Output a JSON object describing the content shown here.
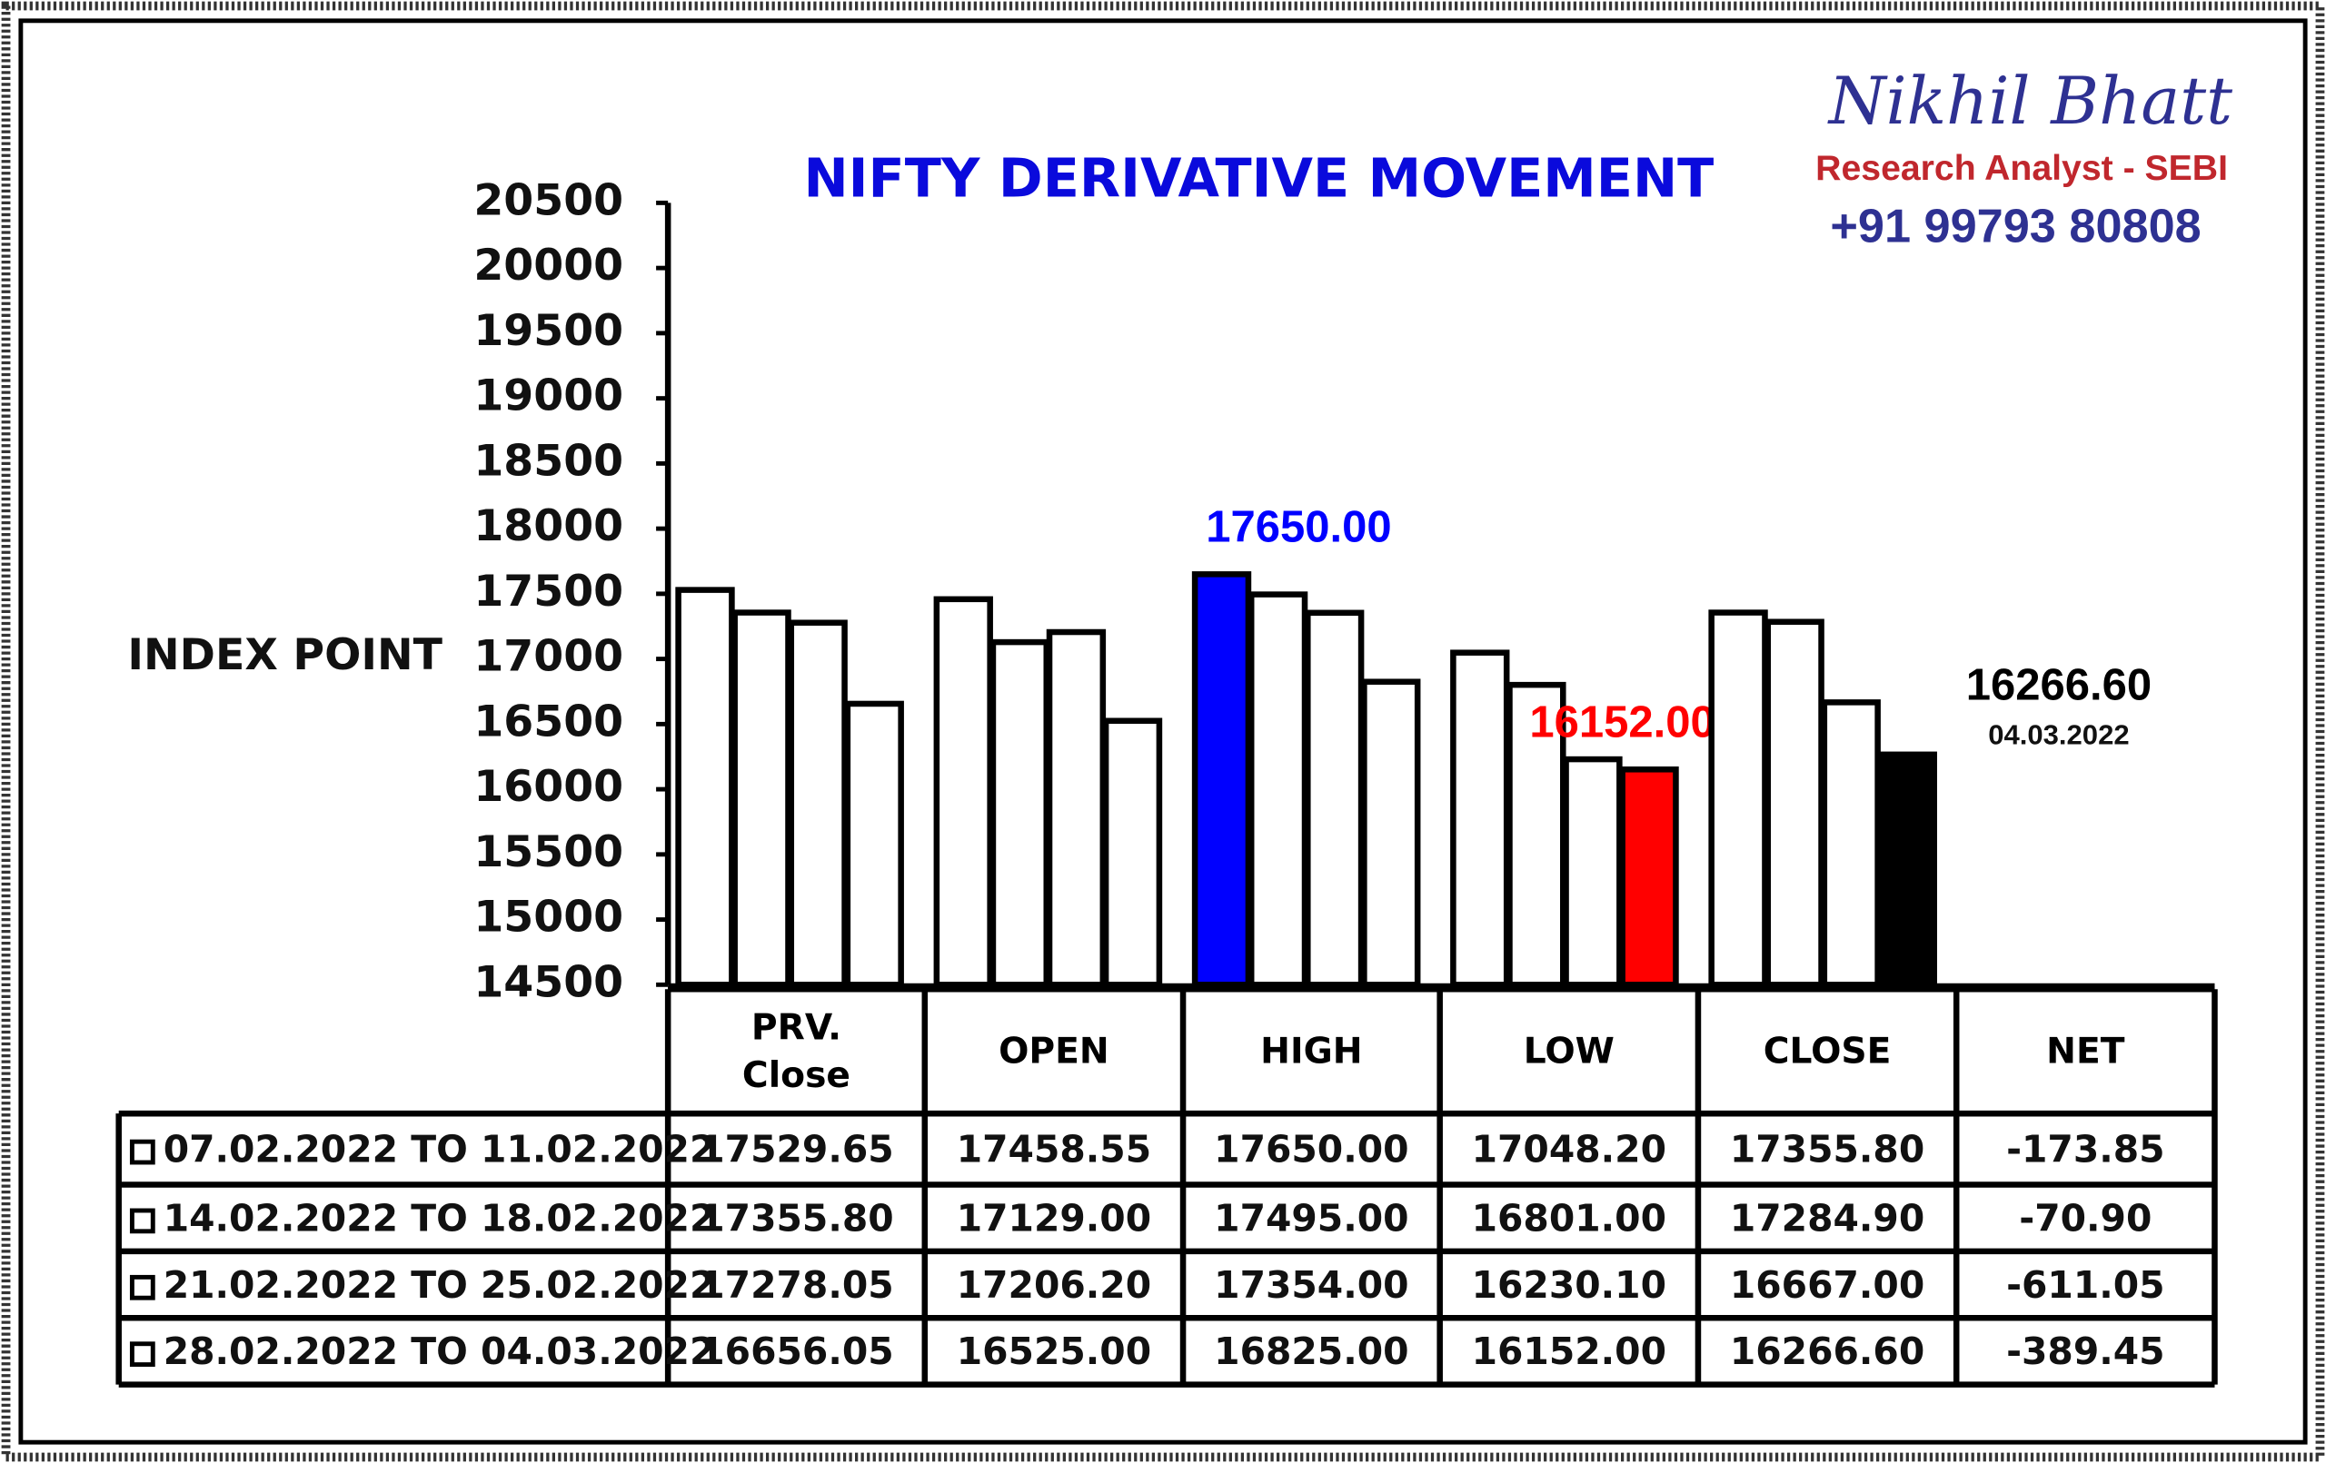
{
  "chart_data": {
    "type": "bar",
    "title": "NIFTY DERIVATIVE MOVEMENT",
    "y_label": "INDEX POINT",
    "categories": [
      "PRV. Close",
      "OPEN",
      "HIGH",
      "LOW",
      "CLOSE"
    ],
    "net_header": "NET",
    "ylim": [
      14500,
      20500
    ],
    "yticks": [
      14500,
      15000,
      15500,
      16000,
      16500,
      17000,
      17500,
      18000,
      18500,
      19000,
      19500,
      20000,
      20500
    ],
    "series": [
      {
        "name": "07.02.2022 TO 11.02.2022",
        "values": [
          17529.65,
          17458.55,
          17650.0,
          17048.2,
          17355.8
        ],
        "value_labels": [
          "17529.65",
          "17458.55",
          "17650.00",
          "17048.20",
          "17355.80"
        ],
        "colors": [
          "#ffffff",
          "#ffffff",
          "#0000ff",
          "#ffffff",
          "#ffffff"
        ],
        "net": -173.85,
        "net_label": "-173.85"
      },
      {
        "name": "14.02.2022 TO 18.02.2022",
        "values": [
          17355.8,
          17129.0,
          17495.0,
          16801.0,
          17284.9
        ],
        "value_labels": [
          "17355.80",
          "17129.00",
          "17495.00",
          "16801.00",
          "17284.90"
        ],
        "colors": [
          "#ffffff",
          "#ffffff",
          "#ffffff",
          "#ffffff",
          "#ffffff"
        ],
        "net": -70.9,
        "net_label": "-70.90"
      },
      {
        "name": "21.02.2022 TO 25.02.2022",
        "values": [
          17278.05,
          17206.2,
          17354.0,
          16230.1,
          16667.0
        ],
        "value_labels": [
          "17278.05",
          "17206.20",
          "17354.00",
          "16230.10",
          "16667.00"
        ],
        "colors": [
          "#ffffff",
          "#ffffff",
          "#ffffff",
          "#ffffff",
          "#ffffff"
        ],
        "net": -611.05,
        "net_label": "-611.05"
      },
      {
        "name": "28.02.2022 TO 04.03.2022",
        "values": [
          16656.05,
          16525.0,
          16825.0,
          16152.0,
          16266.6
        ],
        "value_labels": [
          "16656.05",
          "16525.00",
          "16825.00",
          "16152.00",
          "16266.60"
        ],
        "colors": [
          "#ffffff",
          "#ffffff",
          "#ffffff",
          "#ff0000",
          "#000000"
        ],
        "net": -389.45,
        "net_label": "-389.45"
      }
    ],
    "date_note": "04.03.2022",
    "branding": {
      "name": "Nikhil Bhatt",
      "role": "Research Analyst - SEBI",
      "phone": "+91 99793 80808"
    }
  }
}
